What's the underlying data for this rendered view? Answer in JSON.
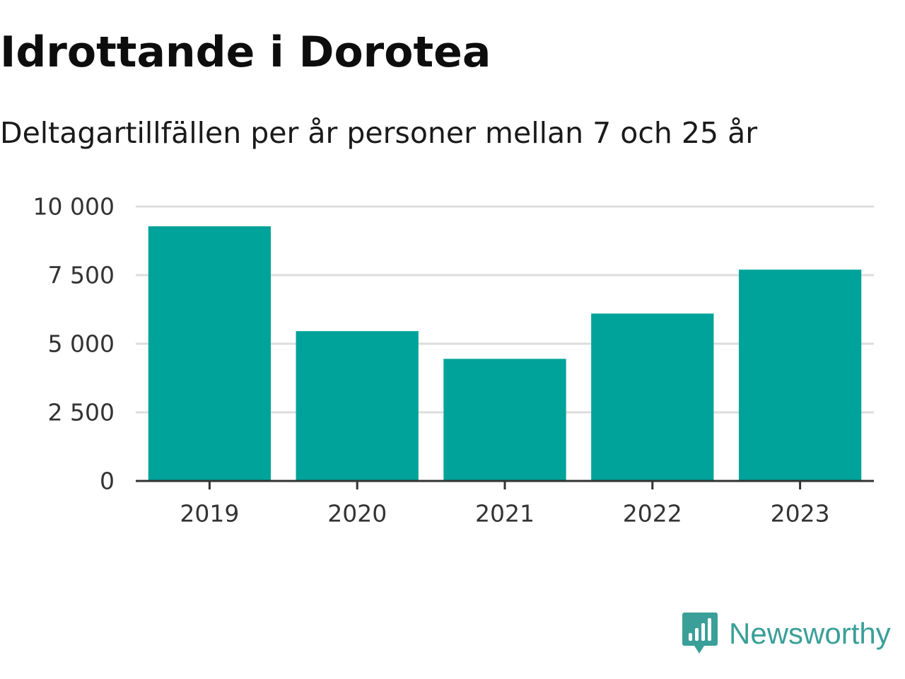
{
  "title": "Idrottande i Dorotea",
  "subtitle": "Deltagartillfällen per år personer mellan 7 och 25 år",
  "brand": {
    "name": "Newsworthy",
    "icon": "newsworthy-logo-icon",
    "color": "#3a9f98"
  },
  "chart_data": {
    "type": "bar",
    "categories": [
      "2019",
      "2020",
      "2021",
      "2022",
      "2023"
    ],
    "values": [
      9280,
      5460,
      4450,
      6100,
      7700
    ],
    "ylim": [
      0,
      10000
    ],
    "yticks": [
      0,
      2500,
      5000,
      7500,
      10000
    ],
    "ytick_labels": [
      "0",
      "2 500",
      "5 000",
      "7 500",
      "10 000"
    ],
    "xlabel": "",
    "ylabel": "",
    "grid": true,
    "legend": "none",
    "bar_color": "#00a39a",
    "grid_color": "#dddddd",
    "axis_color": "#333333"
  }
}
